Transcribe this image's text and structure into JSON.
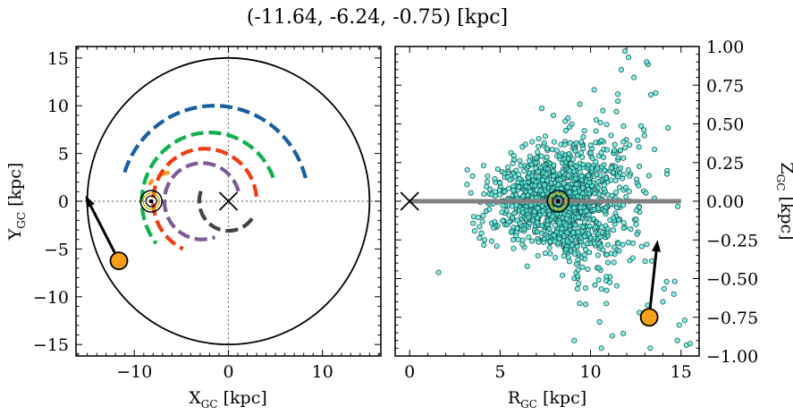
{
  "figure": {
    "title": "(-11.64, -6.24, -0.75) [kpc]"
  },
  "colors": {
    "ring_blue": "#1a5fa0",
    "ring_green": "#0fb14e",
    "ring_orange": "#f39a1a",
    "ring_red": "#ef3d12",
    "ring_purple": "#7e5a96",
    "ring_dark": "#444444",
    "marker_orange": "#f6a01a",
    "scatter_fill": "#5ce8dc",
    "scatter_edge": "#0a4a44",
    "sun_ring": "#c8b400",
    "plane_line": "#808080"
  },
  "chart_data": [
    {
      "type": "scatter",
      "name": "top-down-map",
      "xlabel_main": "X",
      "xlabel_sub": "GC",
      "xlabel_unit": " [kpc]",
      "ylabel_main": "Y",
      "ylabel_sub": "GC",
      "ylabel_unit": " [kpc]",
      "xlim": [
        -16.2,
        16.2
      ],
      "ylim": [
        -16.2,
        16.2
      ],
      "xticks": [
        -10,
        0,
        10
      ],
      "yticks": [
        -15,
        -10,
        -5,
        0,
        5,
        10,
        15
      ],
      "xtick_labels": [
        "−10",
        "0",
        "10"
      ],
      "ytick_labels": [
        "−15",
        "−10",
        "−5",
        "0",
        "5",
        "10",
        "15"
      ],
      "boundary_circle_radius": 15,
      "galactic_center": [
        0,
        0
      ],
      "sun_position": [
        -8.2,
        0
      ],
      "object_position": [
        -11.64,
        -6.24
      ],
      "arrow_tip": [
        -15.2,
        0.6
      ],
      "arcs": [
        {
          "color": "ring_blue",
          "center": [
            -1.5,
            0
          ],
          "radius": 10,
          "start_deg": 14,
          "end_deg": 163
        },
        {
          "color": "ring_green",
          "center": [
            -2,
            0
          ],
          "radius": 7.2,
          "start_deg": 20,
          "end_deg": 218
        },
        {
          "color": "ring_orange",
          "center": [
            -6,
            0
          ],
          "radius": 3,
          "start_deg": 95,
          "end_deg": 145
        },
        {
          "color": "ring_red",
          "center": [
            -2.5,
            0
          ],
          "radius": 5.5,
          "start_deg": 5,
          "end_deg": 245
        },
        {
          "color": "ring_purple",
          "center": [
            -2.8,
            0
          ],
          "radius": 4,
          "start_deg": 15,
          "end_deg": 290
        },
        {
          "color": "ring_dark",
          "center": [
            0,
            0
          ],
          "radius": 3.1,
          "start_deg": 160,
          "end_deg": 332
        }
      ]
    },
    {
      "type": "scatter",
      "name": "radial-height-plot",
      "xlabel_main": "R",
      "xlabel_sub": "GC",
      "xlabel_unit": " [kpc]",
      "ylabel_main": "Z",
      "ylabel_sub": "GC",
      "ylabel_unit": " [kpc]",
      "xlim": [
        -0.8,
        16.0
      ],
      "ylim": [
        -1.0,
        1.0
      ],
      "xticks": [
        0,
        5,
        10,
        15
      ],
      "yticks": [
        -1.0,
        -0.75,
        -0.5,
        -0.25,
        0.0,
        0.25,
        0.5,
        0.75,
        1.0
      ],
      "xtick_labels": [
        "0",
        "5",
        "10",
        "15"
      ],
      "ytick_labels": [
        "−1.00",
        "−0.75",
        "−0.50",
        "−0.25",
        "0.00",
        "0.25",
        "0.50",
        "0.75",
        "1.00"
      ],
      "galactic_center": [
        0,
        0
      ],
      "sun_position": [
        8.2,
        0
      ],
      "object_position": [
        13.24,
        -0.75
      ],
      "arrow_tip": [
        13.7,
        -0.25
      ],
      "plane_line_x": [
        0,
        15
      ],
      "plane_line_y": 0,
      "scatter_distribution": {
        "count": 1300,
        "r_mean": 8.4,
        "r_std": 2.0,
        "z_std_base": 0.12,
        "z_std_growth": 0.03,
        "r_range": [
          3.0,
          15.5
        ],
        "z_range": [
          -1.0,
          1.0
        ]
      },
      "scatter_outliers": [
        [
          1.6,
          -0.46
        ],
        [
          11.9,
          0.97
        ],
        [
          13.1,
          0.9
        ],
        [
          14.9,
          -0.8
        ],
        [
          15.3,
          -0.93
        ],
        [
          15.5,
          -0.92
        ],
        [
          13.3,
          -0.95
        ],
        [
          11.2,
          -0.87
        ],
        [
          10.6,
          -0.95
        ],
        [
          9.1,
          -0.9
        ],
        [
          12.7,
          -0.72
        ],
        [
          14.2,
          -0.52
        ],
        [
          14.6,
          -0.6
        ],
        [
          12.4,
          0.8
        ],
        [
          11.7,
          0.85
        ],
        [
          10.2,
          0.72
        ],
        [
          7.3,
          0.6
        ],
        [
          13.6,
          0.7
        ],
        [
          6.5,
          -0.42
        ],
        [
          14.8,
          -0.9
        ],
        [
          15.2,
          -0.77
        ],
        [
          14.0,
          -0.65
        ],
        [
          12.1,
          0.93
        ],
        [
          10.5,
          -0.78
        ],
        [
          9.4,
          -0.66
        ]
      ]
    }
  ]
}
